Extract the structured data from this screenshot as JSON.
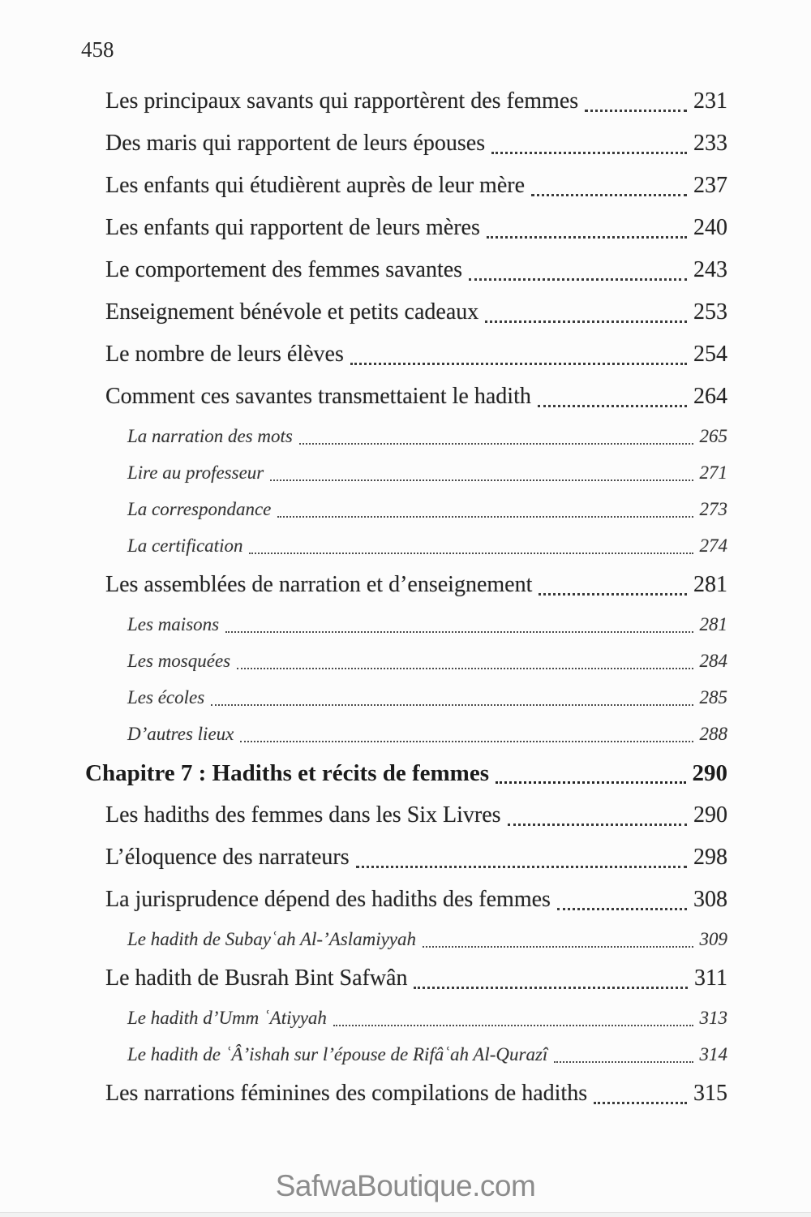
{
  "page": {
    "number": "458",
    "footer": "SafwaBoutique.com"
  },
  "toc": {
    "entries": [
      {
        "level": "l1",
        "title": "Les principaux savants qui rapportèrent des femmes",
        "page": "231"
      },
      {
        "level": "l1",
        "title": "Des maris qui rapportent de leurs épouses",
        "page": "233"
      },
      {
        "level": "l1",
        "title": "Les enfants qui étudièrent auprès de leur mère",
        "page": "237"
      },
      {
        "level": "l1",
        "title": "Les enfants qui rapportent de leurs mères",
        "page": "240"
      },
      {
        "level": "l1",
        "title": "Le comportement des femmes savantes",
        "page": "243"
      },
      {
        "level": "l1",
        "title": "Enseignement bénévole et petits cadeaux",
        "page": "253"
      },
      {
        "level": "l1",
        "title": "Le nombre de leurs élèves",
        "page": "254"
      },
      {
        "level": "l1",
        "title": "Comment ces savantes transmettaient le hadith",
        "page": "264"
      },
      {
        "level": "l2",
        "title": "La narration des mots",
        "page": "265"
      },
      {
        "level": "l2",
        "title": "Lire au professeur",
        "page": "271"
      },
      {
        "level": "l2",
        "title": "La correspondance",
        "page": "273"
      },
      {
        "level": "l2",
        "title": "La certification",
        "page": "274"
      },
      {
        "level": "l1",
        "title": "Les assemblées de narration et d’enseignement",
        "page": "281"
      },
      {
        "level": "l2",
        "title": "Les maisons",
        "page": "281"
      },
      {
        "level": "l2",
        "title": "Les mosquées",
        "page": "284"
      },
      {
        "level": "l2",
        "title": "Les écoles",
        "page": "285"
      },
      {
        "level": "l2",
        "title": "D’autres lieux",
        "page": "288"
      },
      {
        "level": "ch",
        "title": "Chapitre 7 : Hadiths et récits de femmes",
        "page": "290"
      },
      {
        "level": "l1",
        "title": "Les hadiths des femmes dans les Six Livres",
        "page": "290"
      },
      {
        "level": "l1",
        "title": "L’éloquence des narrateurs",
        "page": "298"
      },
      {
        "level": "l1",
        "title": "La jurisprudence dépend des hadiths des femmes",
        "page": "308"
      },
      {
        "level": "l2",
        "title": "Le hadith de Subayʿah Al-’Aslamiyyah",
        "page": "309"
      },
      {
        "level": "l1",
        "title": "Le hadith de Busrah Bint Safwân",
        "page": "311"
      },
      {
        "level": "l2",
        "title": "Le hadith d’Umm ʿAtiyyah",
        "page": "313"
      },
      {
        "level": "l2",
        "title": "Le hadith de ʿÂ’ishah sur l’épouse de Rifâʿah Al-Qurazî",
        "page": "314"
      },
      {
        "level": "l1",
        "title": "Les narrations féminines des compilations de hadiths",
        "page": "315"
      }
    ]
  }
}
